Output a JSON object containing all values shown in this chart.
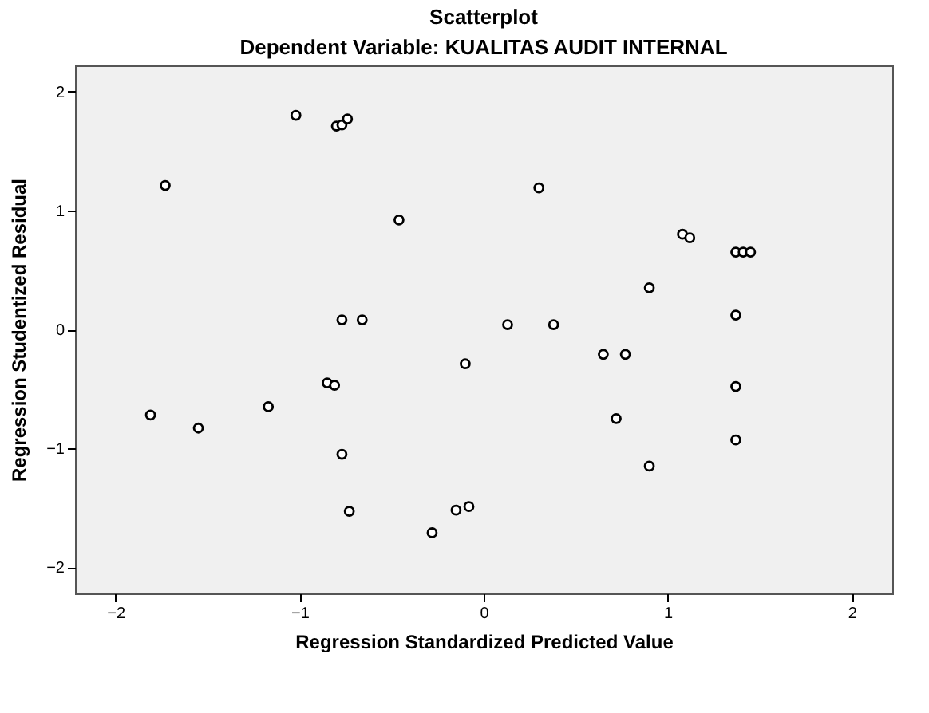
{
  "chart_data": {
    "type": "scatter",
    "title": "Scatterplot",
    "subtitle": "Dependent Variable: KUALITAS AUDIT INTERNAL",
    "xlabel": "Regression Standardized Predicted Value",
    "ylabel": "Regression Studentized Residual",
    "x": [
      -1.02,
      -0.8,
      -0.77,
      -0.74,
      -1.73,
      -0.46,
      0.3,
      1.08,
      1.12,
      1.37,
      1.41,
      1.45,
      0.9,
      -0.77,
      -0.66,
      0.13,
      0.38,
      1.37,
      -0.1,
      0.65,
      0.77,
      1.37,
      -0.85,
      -0.81,
      -1.17,
      -1.81,
      -1.55,
      0.72,
      -0.77,
      1.37,
      0.9,
      -0.73,
      -0.15,
      -0.08,
      -0.28
    ],
    "series": [
      {
        "color": "#000000",
        "values": [
          1.8,
          1.71,
          1.72,
          1.77,
          1.21,
          0.92,
          1.19,
          0.8,
          0.77,
          0.65,
          0.65,
          0.65,
          0.35,
          0.08,
          0.08,
          0.04,
          0.04,
          0.12,
          -0.29,
          -0.21,
          -0.21,
          -0.48,
          -0.45,
          -0.47,
          -0.65,
          -0.72,
          -0.83,
          -0.75,
          -1.05,
          -0.93,
          -1.15,
          -1.53,
          -1.52,
          -1.49,
          -1.71
        ]
      }
    ],
    "xlim": [
      -2.22,
      2.22
    ],
    "ylim": [
      -2.22,
      2.22
    ],
    "xticks": [
      -2,
      -1,
      0,
      1,
      2
    ],
    "yticks": [
      -2,
      -1,
      0,
      1,
      2
    ],
    "grid": false,
    "legend": false,
    "marker": "circle"
  }
}
